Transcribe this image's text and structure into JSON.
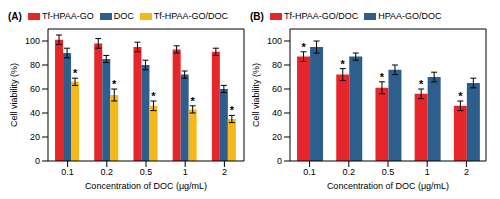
{
  "chart_data": [
    {
      "type": "bar",
      "title": "(A)",
      "x_label": "Concentration of DOC (μg/mL)",
      "y_label": "Cell viability (%)",
      "categories": [
        "0.1",
        "0.2",
        "0.5",
        "1",
        "2"
      ],
      "ylim": [
        0,
        110
      ],
      "yticks": [
        0,
        20,
        40,
        60,
        80,
        100
      ],
      "legend": "top",
      "series": [
        {
          "name": "Tf-HPAA-GO",
          "color": "#e5262b",
          "values": [
            101,
            98,
            95,
            93,
            91
          ],
          "errors": [
            4,
            4,
            4,
            3,
            3
          ]
        },
        {
          "name": "DOC",
          "color": "#2e5f8c",
          "values": [
            90,
            85,
            80,
            72,
            60
          ],
          "errors": [
            4,
            3,
            4,
            3,
            3
          ]
        },
        {
          "name": "Tf-HPAA-GO/DOC",
          "color": "#f5b71a",
          "values": [
            66,
            55,
            46,
            43,
            35
          ],
          "errors": [
            3,
            5,
            4,
            3,
            3
          ],
          "annotations": [
            "*",
            "*",
            "*",
            "*",
            "*"
          ]
        }
      ]
    },
    {
      "type": "bar",
      "title": "(B)",
      "x_label": "Concentration of DOC (μg/mL)",
      "y_label": "Cell viability (%)",
      "categories": [
        "0.1",
        "0.2",
        "0.5",
        "1",
        "2"
      ],
      "ylim": [
        0,
        110
      ],
      "yticks": [
        0,
        20,
        40,
        60,
        80,
        100
      ],
      "legend": "top",
      "series": [
        {
          "name": "Tf-HPAA-GO/DOC",
          "color": "#e5262b",
          "values": [
            87,
            72,
            61,
            56,
            46
          ],
          "errors": [
            4,
            5,
            5,
            4,
            4
          ],
          "annotations": [
            "*",
            "*",
            "*",
            "*",
            "*"
          ]
        },
        {
          "name": "HPAA-GO/DOC",
          "color": "#2e5f8c",
          "values": [
            95,
            87,
            76,
            70,
            65
          ],
          "errors": [
            5,
            3,
            4,
            4,
            4
          ]
        }
      ]
    }
  ]
}
